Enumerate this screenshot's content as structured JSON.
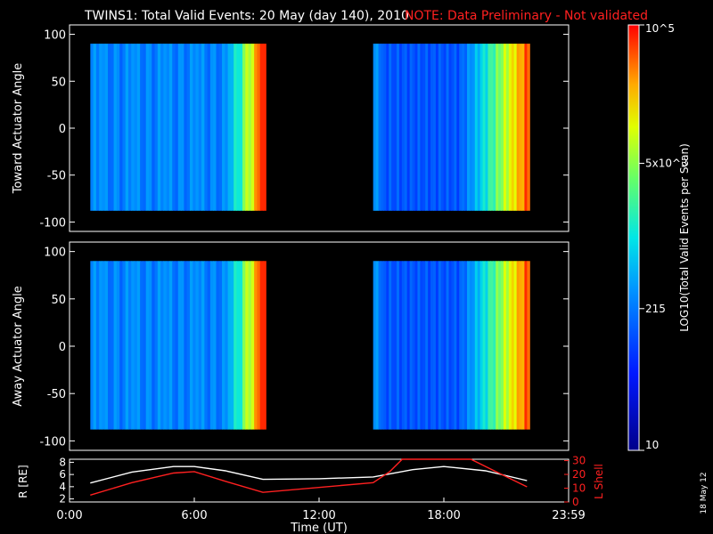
{
  "header": {
    "title": "TWINS1: Total Valid Events: 20 May (day 140), 2010",
    "note": "NOTE: Data Preliminary - Not validated"
  },
  "chart_data": [
    {
      "type": "heatmap",
      "panel": "toward",
      "ylabel": "Toward Actuator Angle",
      "ylim": [
        -110,
        110
      ],
      "yticks": [
        100,
        50,
        0,
        -50,
        -100
      ],
      "xlim": [
        0,
        24
      ],
      "blocks": [
        {
          "t_start": 1.0,
          "t_end": 9.3,
          "angle_min": -88,
          "angle_max": 90
        },
        {
          "t_start": 14.6,
          "t_end": 22.0,
          "angle_min": -88,
          "angle_max": 90
        }
      ]
    },
    {
      "type": "heatmap",
      "panel": "away",
      "ylabel": "Away Actuator Angle",
      "ylim": [
        -110,
        110
      ],
      "yticks": [
        100,
        50,
        0,
        -50,
        -100
      ],
      "xlim": [
        0,
        24
      ],
      "blocks": [
        {
          "t_start": 1.0,
          "t_end": 9.3,
          "angle_min": -88,
          "angle_max": 90
        },
        {
          "t_start": 14.6,
          "t_end": 22.0,
          "angle_min": -88,
          "angle_max": 90
        }
      ]
    },
    {
      "type": "line",
      "panel": "orbit",
      "ylabel_left": "R [RE]",
      "ylabel_right": "L Shell",
      "yticks_left": [
        8,
        6,
        4,
        2
      ],
      "yticks_right": [
        30,
        20,
        10,
        0
      ],
      "ylim_left": [
        1.5,
        8.5
      ],
      "ylim_right": [
        0,
        31
      ],
      "xlabel": "Time (UT)",
      "xticks": [
        "0:00",
        "6:00",
        "12:00",
        "18:00",
        "23:59"
      ],
      "xlim": [
        0,
        24
      ],
      "series": [
        {
          "axis": "left",
          "color": "#ffffff",
          "x": [
            1.0,
            3.0,
            5.0,
            6.0,
            7.5,
            9.3,
            12.0,
            14.6,
            16.5,
            18.0,
            20.0,
            22.0
          ],
          "y": [
            4.6,
            6.4,
            7.3,
            7.3,
            6.6,
            5.2,
            5.3,
            5.6,
            6.8,
            7.3,
            6.6,
            5.0
          ]
        },
        {
          "axis": "right",
          "color": "#ff2020",
          "x": [
            1.0,
            3.0,
            5.0,
            6.0,
            7.5,
            9.3,
            14.6,
            15.4,
            16.0,
            19.3,
            20.5,
            22.0
          ],
          "y": [
            5.0,
            14.0,
            21.0,
            22.0,
            15.0,
            7.0,
            14.0,
            22.0,
            31.0,
            31.0,
            22.0,
            11.0
          ]
        }
      ]
    }
  ],
  "colorbar": {
    "label": "LOG10(Total Valid Events per Scan)",
    "ticks": [
      {
        "text": "10",
        "value": 10
      },
      {
        "text": "215",
        "value": 215
      },
      {
        "text": "5x10^3",
        "value": 5000
      },
      {
        "text": "10^5",
        "value": 100000
      }
    ]
  },
  "footer": {
    "date_stamp": "18 May 12"
  }
}
